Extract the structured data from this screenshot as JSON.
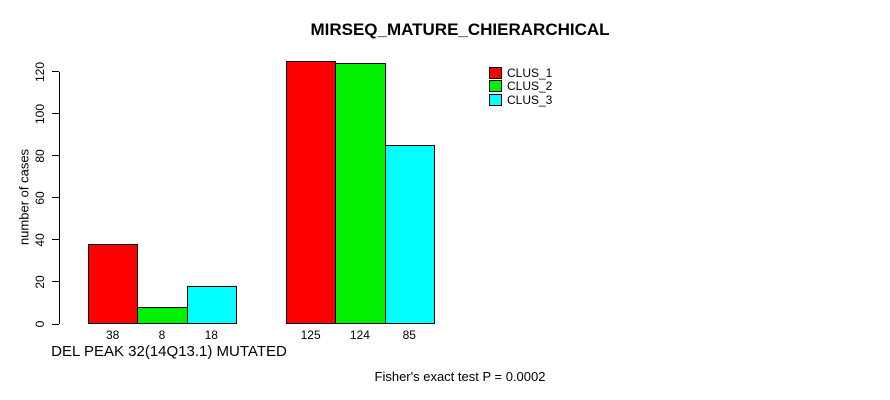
{
  "chart_data": {
    "type": "bar",
    "title": "MIRSEQ_MATURE_CHIERARCHICAL",
    "ylabel": "number of cases",
    "xlabel": "DEL PEAK 32(14Q13.1) MUTATED",
    "annotation": "Fisher's exact test P = 0.0002",
    "yticks": [
      0,
      20,
      40,
      60,
      80,
      100,
      120
    ],
    "ylim": [
      0,
      126
    ],
    "grid": false,
    "legend_position": "top-right",
    "categories": [
      "DEL PEAK 32(14Q13.1) MUTATED",
      ""
    ],
    "series": [
      {
        "name": "CLUS_1",
        "color": "#ff0000",
        "values": [
          38,
          125
        ]
      },
      {
        "name": "CLUS_2",
        "color": "#00f000",
        "values": [
          8,
          124
        ]
      },
      {
        "name": "CLUS_3",
        "color": "#00ffff",
        "values": [
          18,
          85
        ]
      }
    ],
    "bar_labels": [
      [
        38,
        8,
        18
      ],
      [
        125,
        124,
        85
      ]
    ]
  }
}
